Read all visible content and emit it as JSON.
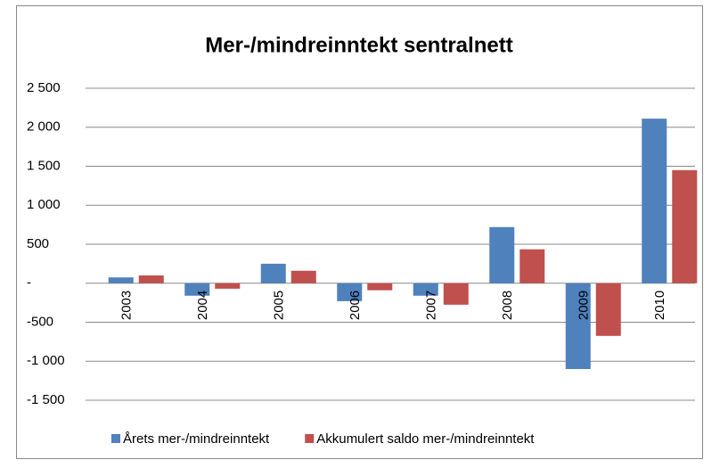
{
  "chart_data": {
    "type": "bar",
    "title": "Mer-/mindreinntekt sentralnett",
    "categories": [
      "2003",
      "2004",
      "2005",
      "2006",
      "2007",
      "2008",
      "2009",
      "2010"
    ],
    "series": [
      {
        "name": "Årets mer-/mindreinntekt",
        "color": "#4f81bd",
        "values": [
          75,
          -160,
          250,
          -230,
          -160,
          720,
          -1100,
          2110
        ]
      },
      {
        "name": "Akkumulert saldo mer-/mindreinntekt",
        "color": "#c0504d",
        "values": [
          100,
          -70,
          160,
          -90,
          -275,
          435,
          -675,
          1450
        ]
      }
    ],
    "ylim": [
      -1500,
      2500
    ],
    "yticks": [
      {
        "value": -1500,
        "label": "-1 500"
      },
      {
        "value": -1000,
        "label": "-1 000"
      },
      -500,
      {
        "value": 0,
        "label": "-"
      },
      500,
      {
        "value": 1000,
        "label": "1 000"
      },
      {
        "value": 1500,
        "label": "1 500"
      },
      {
        "value": 2000,
        "label": "2 000"
      },
      {
        "value": 2500,
        "label": "2 500"
      }
    ],
    "grid": true,
    "legend": "bottom"
  }
}
